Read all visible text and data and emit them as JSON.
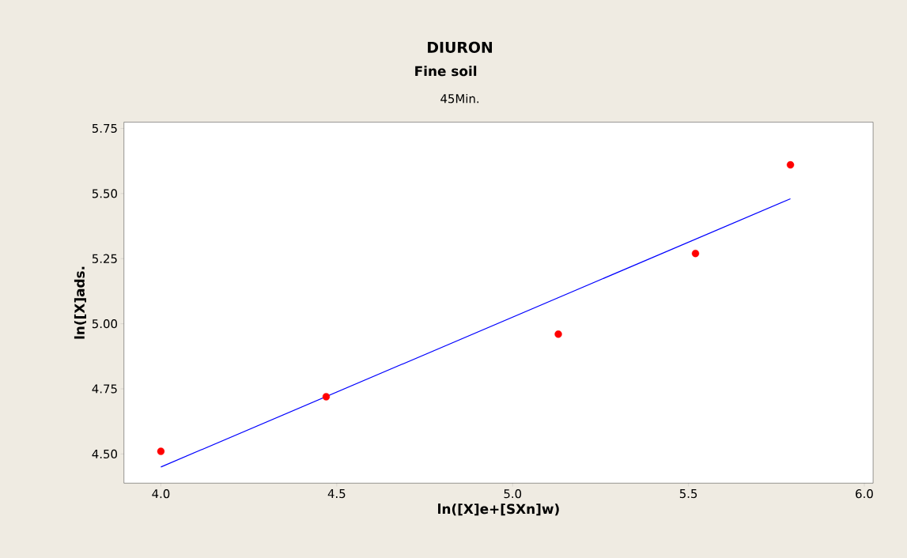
{
  "chart_data": {
    "type": "scatter",
    "title": "DIURON",
    "subtitle": "Fine soil",
    "annotations": [
      "45Min."
    ],
    "xlabel": "ln([X]e+[SXn]w)",
    "ylabel": "ln([X]ads.",
    "series": [
      {
        "type": "scatter",
        "color": "#ff0000",
        "marker": "circle",
        "x": [
          4.0,
          4.47,
          5.13,
          5.52,
          5.79
        ],
        "values": [
          4.51,
          4.72,
          4.96,
          5.27,
          5.61
        ]
      },
      {
        "type": "line",
        "color": "#0000ff",
        "marker": "none",
        "line_style": "solid",
        "x": [
          4.0,
          5.79
        ],
        "values": [
          4.45,
          5.48
        ]
      }
    ],
    "xlim": [
      3.895,
      6.025
    ],
    "ylim": [
      4.388,
      5.774
    ],
    "xticks": [
      {
        "value": 4,
        "label": "4.0"
      },
      {
        "value": 4.5,
        "label": "4.5"
      },
      {
        "value": 5,
        "label": "5.0"
      },
      {
        "value": 5.5,
        "label": "5.5"
      },
      {
        "value": 6,
        "label": "6.0"
      }
    ],
    "yticks": [
      {
        "value": 4.5,
        "label": "4.50"
      },
      {
        "value": 4.75,
        "label": "4.75"
      },
      {
        "value": 5,
        "label": "5.00"
      },
      {
        "value": 5.25,
        "label": "5.25"
      },
      {
        "value": 5.5,
        "label": "5.50"
      },
      {
        "value": 5.75,
        "label": "5.75"
      }
    ],
    "grid": false
  }
}
